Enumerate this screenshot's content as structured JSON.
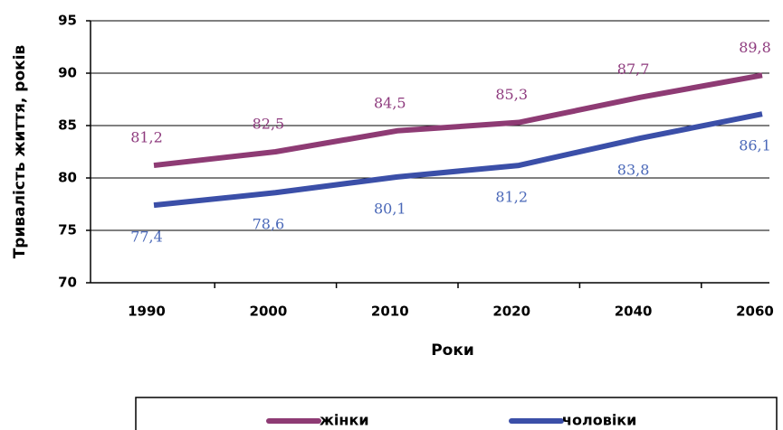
{
  "chart_data": {
    "type": "line",
    "y_label": "Тривалість життя, років",
    "x_label": "Роки",
    "categories": [
      "1990",
      "2000",
      "2010",
      "2020",
      "2040",
      "2060"
    ],
    "series": [
      {
        "name": "жінки",
        "color": "#8e3b74",
        "label_color": "#8e3b7e",
        "values": [
          81.2,
          82.5,
          84.5,
          85.3,
          87.7,
          89.8
        ],
        "value_labels": [
          "81,2",
          "82,5",
          "84,5",
          "85,3",
          "87,7",
          "89,8"
        ]
      },
      {
        "name": "чоловіки",
        "color": "#3b4fa8",
        "label_color": "#4a68b8",
        "values": [
          77.4,
          78.6,
          80.1,
          81.2,
          83.8,
          86.1
        ],
        "value_labels": [
          "77,4",
          "78,6",
          "80,1",
          "81,2",
          "83,8",
          "86,1"
        ]
      }
    ],
    "ylim": [
      70,
      95
    ],
    "yticks": [
      70,
      75,
      80,
      85,
      90,
      95
    ],
    "grid": true
  }
}
